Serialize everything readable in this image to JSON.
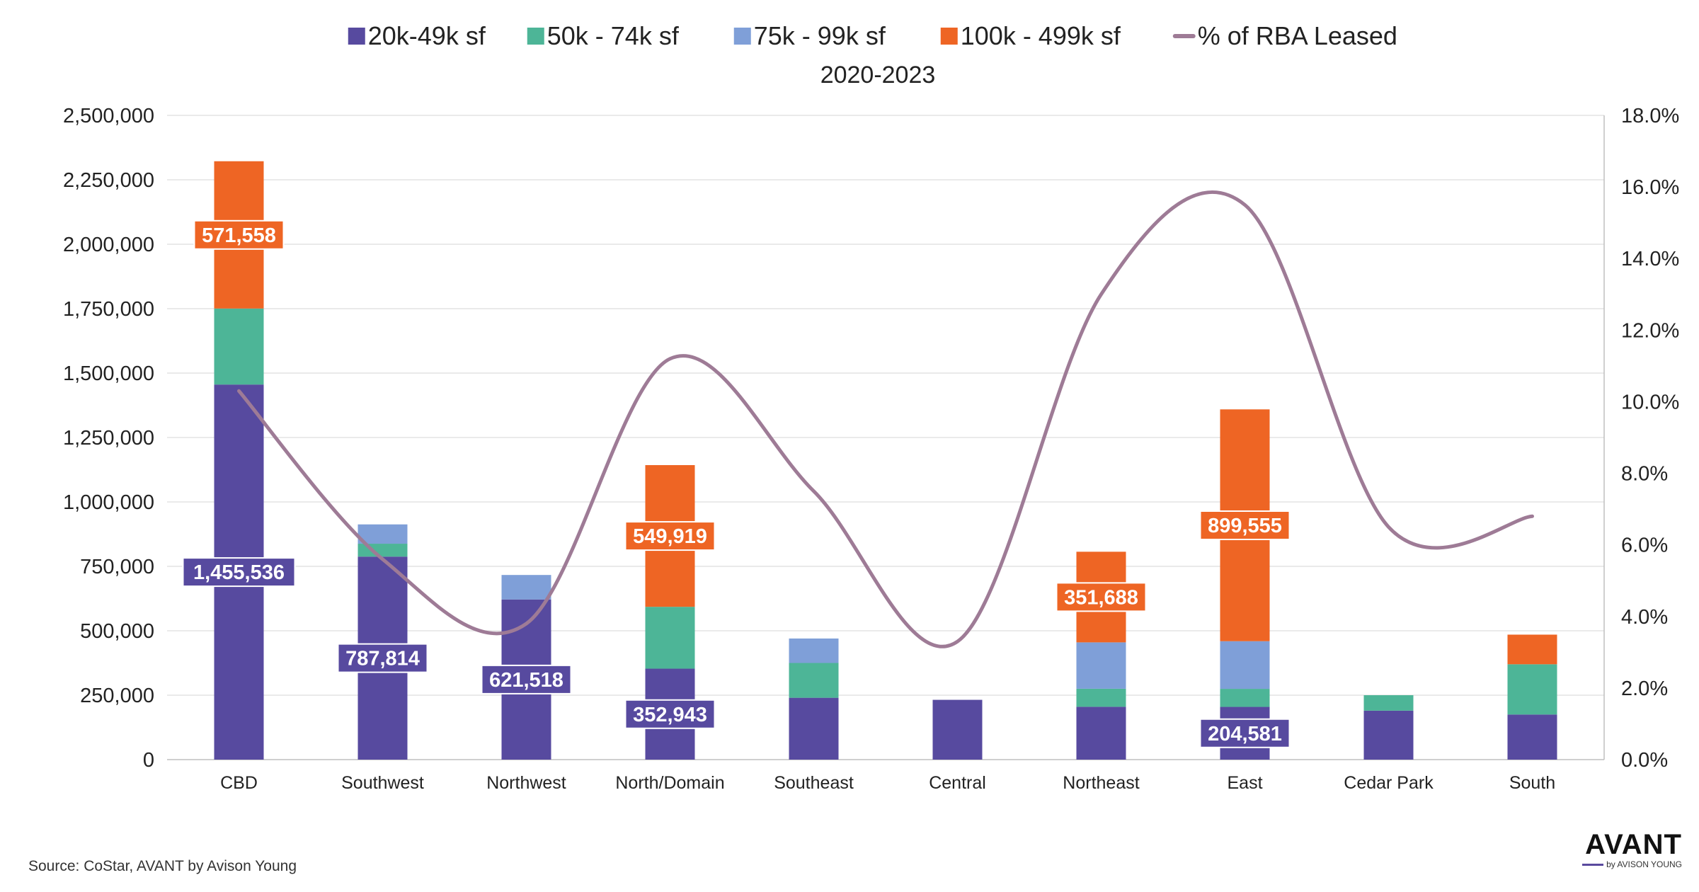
{
  "chart_data": {
    "type": "bar",
    "stacked": true,
    "title": "2020-2023",
    "source": "Source: CoStar, AVANT by Avison Young",
    "brand": {
      "name": "AVANT",
      "sub": "by AVISON YOUNG"
    },
    "categories": [
      "CBD",
      "Southwest",
      "Northwest",
      "North/Domain",
      "Southeast",
      "Central",
      "Northeast",
      "East",
      "Cedar Park",
      "South"
    ],
    "series": [
      {
        "name": "20k-49k sf",
        "color": "#574a9f",
        "label_color": "#574a9f",
        "values": [
          1455536,
          787814,
          621518,
          352943,
          240000,
          232000,
          205000,
          204581,
          190000,
          175000
        ],
        "labels": [
          "1,455,536",
          "787,814",
          "621,518",
          "352,943",
          null,
          null,
          null,
          "204,581",
          null,
          null
        ]
      },
      {
        "name": "50k - 74k sf",
        "color": "#4db597",
        "label_color": "#4db597",
        "values": [
          295000,
          50000,
          0,
          240000,
          135000,
          0,
          70000,
          70000,
          60000,
          195000
        ],
        "labels": [
          null,
          null,
          null,
          null,
          null,
          null,
          null,
          null,
          null,
          null
        ]
      },
      {
        "name": "75k - 99k sf",
        "color": "#7f9fd8",
        "label_color": "#7f9fd8",
        "values": [
          0,
          75000,
          95000,
          0,
          95000,
          0,
          180000,
          185000,
          0,
          0
        ],
        "labels": [
          null,
          null,
          null,
          null,
          null,
          null,
          null,
          null,
          null,
          null
        ]
      },
      {
        "name": "100k - 499k sf",
        "color": "#ee6524",
        "label_color": "#ee6524",
        "values": [
          571558,
          0,
          0,
          549919,
          0,
          0,
          351688,
          899555,
          0,
          115000
        ],
        "labels": [
          "571,558",
          null,
          null,
          "549,919",
          null,
          null,
          "351,688",
          "899,555",
          null,
          null
        ]
      }
    ],
    "line": {
      "name": "% of RBA Leased",
      "color": "#9e7b96",
      "axis": "right",
      "values": [
        10.3,
        5.6,
        3.8,
        11.2,
        7.5,
        3.3,
        13.0,
        15.5,
        6.5,
        6.8
      ]
    },
    "y_left": {
      "range": [
        0,
        2500000
      ],
      "ticks": [
        "0",
        "250,000",
        "500,000",
        "750,000",
        "1,000,000",
        "1,250,000",
        "1,500,000",
        "1,750,000",
        "2,000,000",
        "2,250,000",
        "2,500,000"
      ]
    },
    "y_right": {
      "range": [
        0,
        18
      ],
      "ticks": [
        "0.0%",
        "2.0%",
        "4.0%",
        "6.0%",
        "8.0%",
        "10.0%",
        "12.0%",
        "14.0%",
        "16.0%",
        "18.0%"
      ]
    },
    "grid": true,
    "legend_position": "top"
  }
}
